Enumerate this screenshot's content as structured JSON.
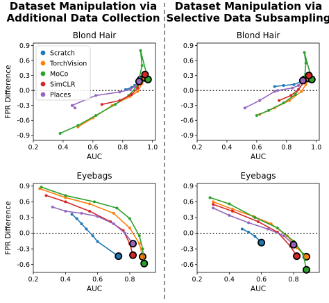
{
  "figure": {
    "columns": [
      {
        "title_line1": "Dataset Manipulation via",
        "title_line2": "Additional Data Collection"
      },
      {
        "title_line1": "Dataset Manipulation via",
        "title_line2": "Selective Data Subsampling"
      }
    ]
  },
  "colors": {
    "Scratch": "#1f77b4",
    "TorchVision": "#ff7f0e",
    "MoCo": "#2ca02c",
    "SimCLR": "#d62728",
    "Places": "#9467bd"
  },
  "chart_data": [
    {
      "type": "line",
      "title": "Blond Hair",
      "xlabel": "AUC",
      "ylabel": "FPR Difference",
      "xlim": [
        0.2,
        1.02
      ],
      "ylim": [
        -1.0,
        0.95
      ],
      "xticks": [
        "0.2",
        "0.4",
        "0.6",
        "0.8",
        "1.0"
      ],
      "yticks": [
        "0.9",
        "0.6",
        "0.3",
        "0.0",
        "-0.3",
        "-0.6",
        "-0.9"
      ],
      "legend": {
        "position": "upper-left",
        "entries": [
          "Scratch",
          "TorchVision",
          "MoCo",
          "SimCLR",
          "Places"
        ]
      },
      "reference_line": 0.0,
      "series": [
        {
          "name": "Scratch",
          "points": [
            [
              0.82,
              0.02
            ],
            [
              0.86,
              0.06
            ],
            [
              0.88,
              0.1
            ],
            [
              0.9,
              0.14
            ],
            [
              0.91,
              0.2
            ],
            [
              0.92,
              0.22
            ]
          ]
        },
        {
          "name": "TorchVision",
          "points": [
            [
              0.5,
              -0.73
            ],
            [
              0.6,
              -0.55
            ],
            [
              0.73,
              -0.3
            ],
            [
              0.85,
              -0.12
            ],
            [
              0.9,
              -0.02
            ],
            [
              0.93,
              0.14
            ],
            [
              0.95,
              0.25
            ]
          ]
        },
        {
          "name": "MoCo",
          "points": [
            [
              0.38,
              -0.86
            ],
            [
              0.5,
              -0.7
            ],
            [
              0.62,
              -0.5
            ],
            [
              0.75,
              -0.28
            ],
            [
              0.84,
              -0.1
            ],
            [
              0.9,
              0.1
            ],
            [
              0.93,
              0.5
            ],
            [
              0.92,
              0.8
            ],
            [
              0.97,
              0.22
            ]
          ]
        },
        {
          "name": "SimCLR",
          "points": [
            [
              0.66,
              -0.28
            ],
            [
              0.78,
              -0.2
            ],
            [
              0.86,
              -0.08
            ],
            [
              0.9,
              0.05
            ],
            [
              0.92,
              0.2
            ],
            [
              0.95,
              0.32
            ]
          ]
        },
        {
          "name": "Places",
          "points": [
            [
              0.48,
              -0.35
            ],
            [
              0.46,
              -0.3
            ],
            [
              0.62,
              -0.1
            ],
            [
              0.78,
              -0.03
            ],
            [
              0.85,
              0.02
            ],
            [
              0.88,
              0.08
            ],
            [
              0.91,
              0.18
            ]
          ]
        }
      ]
    },
    {
      "type": "line",
      "title": "Blond Hair",
      "xlabel": "AUC",
      "ylabel": "",
      "xlim": [
        0.2,
        1.02
      ],
      "ylim": [
        -1.0,
        0.95
      ],
      "xticks": [
        "0.2",
        "0.4",
        "0.6",
        "0.8",
        "1.0"
      ],
      "yticks": [
        "0.9",
        "0.6",
        "0.3",
        "0.0",
        "-0.3",
        "-0.6",
        "-0.9"
      ],
      "reference_line": 0.0,
      "series": [
        {
          "name": "Scratch",
          "points": [
            [
              0.72,
              0.08
            ],
            [
              0.78,
              0.1
            ],
            [
              0.85,
              0.12
            ],
            [
              0.9,
              0.18
            ],
            [
              0.92,
              0.22
            ]
          ]
        },
        {
          "name": "TorchVision",
          "points": [
            [
              0.62,
              -0.48
            ],
            [
              0.72,
              -0.35
            ],
            [
              0.82,
              -0.2
            ],
            [
              0.9,
              -0.02
            ],
            [
              0.93,
              0.12
            ],
            [
              0.95,
              0.24
            ]
          ]
        },
        {
          "name": "MoCo",
          "points": [
            [
              0.6,
              -0.5
            ],
            [
              0.68,
              -0.4
            ],
            [
              0.78,
              -0.25
            ],
            [
              0.86,
              -0.08
            ],
            [
              0.92,
              0.2
            ],
            [
              0.93,
              0.55
            ],
            [
              0.92,
              0.76
            ],
            [
              0.97,
              0.22
            ]
          ]
        },
        {
          "name": "SimCLR",
          "points": [
            [
              0.75,
              -0.2
            ],
            [
              0.83,
              -0.1
            ],
            [
              0.88,
              0.02
            ],
            [
              0.92,
              0.18
            ],
            [
              0.95,
              0.3
            ]
          ]
        },
        {
          "name": "Places",
          "points": [
            [
              0.52,
              -0.35
            ],
            [
              0.62,
              -0.2
            ],
            [
              0.72,
              -0.02
            ],
            [
              0.74,
              0.0
            ],
            [
              0.84,
              0.05
            ],
            [
              0.88,
              0.1
            ],
            [
              0.91,
              0.2
            ]
          ]
        }
      ]
    },
    {
      "type": "line",
      "title": "Eyebags",
      "xlabel": "AUC",
      "ylabel": "FPR Difference",
      "xlim": [
        0.2,
        0.96
      ],
      "ylim": [
        -0.75,
        0.95
      ],
      "xticks": [
        "0.2",
        "0.4",
        "0.6",
        "0.8"
      ],
      "yticks": [
        "0.9",
        "0.6",
        "0.3",
        "0.0",
        "-0.3",
        "-0.6"
      ],
      "reference_line": 0.0,
      "series": [
        {
          "name": "Scratch",
          "points": [
            [
              0.44,
              0.36
            ],
            [
              0.47,
              0.28
            ],
            [
              0.5,
              0.18
            ],
            [
              0.53,
              0.08
            ],
            [
              0.57,
              -0.05
            ],
            [
              0.6,
              -0.16
            ],
            [
              0.73,
              -0.44
            ]
          ]
        },
        {
          "name": "TorchVision",
          "points": [
            [
              0.24,
              0.85
            ],
            [
              0.4,
              0.68
            ],
            [
              0.55,
              0.56
            ],
            [
              0.7,
              0.38
            ],
            [
              0.8,
              0.1
            ],
            [
              0.86,
              -0.2
            ],
            [
              0.88,
              -0.45
            ]
          ]
        },
        {
          "name": "MoCo",
          "points": [
            [
              0.25,
              0.88
            ],
            [
              0.4,
              0.72
            ],
            [
              0.58,
              0.6
            ],
            [
              0.72,
              0.48
            ],
            [
              0.8,
              0.28
            ],
            [
              0.86,
              -0.05
            ],
            [
              0.88,
              -0.3
            ],
            [
              0.89,
              -0.58
            ]
          ]
        },
        {
          "name": "SimCLR",
          "points": [
            [
              0.28,
              0.72
            ],
            [
              0.4,
              0.6
            ],
            [
              0.55,
              0.42
            ],
            [
              0.68,
              0.22
            ],
            [
              0.76,
              0.05
            ],
            [
              0.8,
              -0.2
            ],
            [
              0.82,
              -0.42
            ]
          ]
        },
        {
          "name": "Places",
          "points": [
            [
              0.32,
              0.5
            ],
            [
              0.4,
              0.42
            ],
            [
              0.5,
              0.38
            ],
            [
              0.6,
              0.32
            ],
            [
              0.7,
              0.18
            ],
            [
              0.77,
              0.0
            ],
            [
              0.82,
              -0.2
            ]
          ]
        }
      ]
    },
    {
      "type": "line",
      "title": "Eyebags",
      "xlabel": "AUC",
      "ylabel": "",
      "xlim": [
        0.2,
        0.96
      ],
      "ylim": [
        -0.75,
        0.95
      ],
      "xticks": [
        "0.2",
        "0.4",
        "0.6",
        "0.8"
      ],
      "yticks": [
        "0.9",
        "0.6",
        "0.3",
        "0.0",
        "-0.3",
        "-0.6"
      ],
      "reference_line": 0.0,
      "series": [
        {
          "name": "Scratch",
          "points": [
            [
              0.48,
              0.08
            ],
            [
              0.52,
              0.02
            ],
            [
              0.56,
              -0.06
            ],
            [
              0.6,
              -0.18
            ]
          ]
        },
        {
          "name": "TorchVision",
          "points": [
            [
              0.3,
              0.6
            ],
            [
              0.42,
              0.46
            ],
            [
              0.55,
              0.32
            ],
            [
              0.66,
              0.18
            ],
            [
              0.76,
              -0.05
            ],
            [
              0.82,
              -0.28
            ],
            [
              0.88,
              -0.45
            ]
          ]
        },
        {
          "name": "MoCo",
          "points": [
            [
              0.28,
              0.68
            ],
            [
              0.4,
              0.56
            ],
            [
              0.56,
              0.3
            ],
            [
              0.7,
              0.1
            ],
            [
              0.8,
              -0.15
            ],
            [
              0.86,
              -0.4
            ],
            [
              0.88,
              -0.7
            ]
          ]
        },
        {
          "name": "SimCLR",
          "points": [
            [
              0.3,
              0.55
            ],
            [
              0.42,
              0.42
            ],
            [
              0.58,
              0.22
            ],
            [
              0.7,
              0.02
            ],
            [
              0.78,
              -0.25
            ],
            [
              0.82,
              -0.44
            ]
          ]
        },
        {
          "name": "Places",
          "points": [
            [
              0.3,
              0.48
            ],
            [
              0.4,
              0.34
            ],
            [
              0.52,
              0.2
            ],
            [
              0.64,
              0.08
            ],
            [
              0.74,
              -0.05
            ],
            [
              0.8,
              -0.22
            ]
          ]
        }
      ]
    }
  ]
}
